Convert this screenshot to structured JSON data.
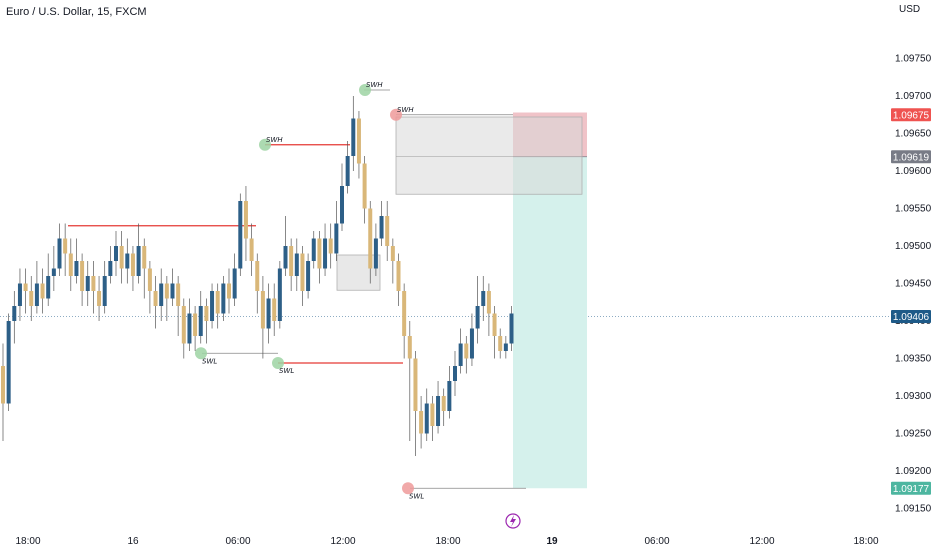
{
  "header": {
    "title": "Euro / U.S. Dollar, 15, FXCM",
    "currency": "USD"
  },
  "colors": {
    "bull": "#2d5f87",
    "bear": "#d9b779",
    "red": "#e53935",
    "profit_zone": "#d5f1ec",
    "loss_zone": "#f0c3c8",
    "gray_box": "#d9d9d9",
    "gray_box_border": "#b0b0b0",
    "green_dot": "#9ed4a3",
    "red_dot": "#ef9a9a",
    "price_badge": "#1e5a88",
    "red_badge": "#ef5350",
    "gray_badge": "#787b86",
    "teal_badge": "#4db6a0",
    "lightning": "#9c27b0"
  },
  "chart_data": {
    "type": "candlestick",
    "title": "Euro / U.S. Dollar, 15, FXCM",
    "ylabel": "USD",
    "ylim": [
      1.0914,
      1.0978
    ],
    "y_ticks": [
      "1.09750",
      "1.09700",
      "1.09650",
      "1.09600",
      "1.09550",
      "1.09500",
      "1.09450",
      "1.09400",
      "1.09350",
      "1.09300",
      "1.09250",
      "1.09200",
      "1.09150"
    ],
    "x_ticks": [
      "18:00",
      "16",
      "06:00",
      "12:00",
      "18:00",
      "19",
      "06:00",
      "12:00",
      "18:00"
    ],
    "price_badges": [
      {
        "label": "1.09675",
        "value": 1.09675,
        "color": "red"
      },
      {
        "label": "1.09619",
        "value": 1.09619,
        "color": "gray"
      },
      {
        "label": "1.09406",
        "value": 1.09406,
        "color": "blue"
      },
      {
        "label": "1.09177",
        "value": 1.09177,
        "color": "teal"
      }
    ],
    "current_price": 1.09406,
    "candles": [
      [
        1.0934,
        1.0929,
        1.0937,
        1.0924
      ],
      [
        1.0929,
        1.094,
        1.0941,
        1.0928
      ],
      [
        1.094,
        1.0942,
        1.0944,
        1.0937
      ],
      [
        1.0942,
        1.0945,
        1.0947,
        1.094
      ],
      [
        1.0945,
        1.0944,
        1.0947,
        1.0941
      ],
      [
        1.0944,
        1.0942,
        1.0946,
        1.094
      ],
      [
        1.0942,
        1.0945,
        1.0948,
        1.0941
      ],
      [
        1.0945,
        1.0943,
        1.0947,
        1.0941
      ],
      [
        1.0943,
        1.0946,
        1.0949,
        1.0942
      ],
      [
        1.0946,
        1.0947,
        1.095,
        1.0944
      ],
      [
        1.0947,
        1.0951,
        1.0953,
        1.0946
      ],
      [
        1.0951,
        1.0949,
        1.0953,
        1.0946
      ],
      [
        1.0949,
        1.0946,
        1.0951,
        1.0944
      ],
      [
        1.0946,
        1.0948,
        1.0951,
        1.0945
      ],
      [
        1.0948,
        1.0944,
        1.0949,
        1.0942
      ],
      [
        1.0944,
        1.0946,
        1.0948,
        1.0942
      ],
      [
        1.0946,
        1.0944,
        1.0948,
        1.0941
      ],
      [
        1.0944,
        1.0942,
        1.0946,
        1.094
      ],
      [
        1.0942,
        1.0946,
        1.0948,
        1.0941
      ],
      [
        1.0946,
        1.0948,
        1.095,
        1.0945
      ],
      [
        1.0948,
        1.095,
        1.0952,
        1.0946
      ],
      [
        1.095,
        1.0947,
        1.0952,
        1.0945
      ],
      [
        1.0947,
        1.0949,
        1.0951,
        1.0945
      ],
      [
        1.0949,
        1.0946,
        1.095,
        1.0944
      ],
      [
        1.0946,
        1.095,
        1.0953,
        1.0945
      ],
      [
        1.095,
        1.0947,
        1.0951,
        1.0943
      ],
      [
        1.0947,
        1.0944,
        1.0948,
        1.0941
      ],
      [
        1.0944,
        1.0942,
        1.0946,
        1.0939
      ],
      [
        1.0942,
        1.0945,
        1.0947,
        1.094
      ],
      [
        1.0945,
        1.0943,
        1.0946,
        1.094
      ],
      [
        1.0943,
        1.0945,
        1.0947,
        1.0942
      ],
      [
        1.0945,
        1.0942,
        1.0946,
        1.0938
      ],
      [
        1.0942,
        1.0937,
        1.0943,
        1.0935
      ],
      [
        1.0937,
        1.0941,
        1.0943,
        1.0936
      ],
      [
        1.0941,
        1.0938,
        1.0942,
        1.0936
      ],
      [
        1.0938,
        1.0942,
        1.0944,
        1.0937
      ],
      [
        1.0942,
        1.094,
        1.0943,
        1.0937
      ],
      [
        1.094,
        1.0944,
        1.0945,
        1.0939
      ],
      [
        1.0944,
        1.0941,
        1.0945,
        1.0939
      ],
      [
        1.0941,
        1.0945,
        1.0946,
        1.094
      ],
      [
        1.0945,
        1.0943,
        1.0947,
        1.0941
      ],
      [
        1.0943,
        1.0947,
        1.0949,
        1.0942
      ],
      [
        1.0947,
        1.0956,
        1.0957,
        1.0946
      ],
      [
        1.0956,
        1.0951,
        1.0958,
        1.0948
      ],
      [
        1.0951,
        1.0948,
        1.0953,
        1.0946
      ],
      [
        1.0948,
        1.0944,
        1.0949,
        1.0941
      ],
      [
        1.0944,
        1.0939,
        1.0946,
        1.0935
      ],
      [
        1.0939,
        1.0943,
        1.0945,
        1.0937
      ],
      [
        1.0943,
        1.094,
        1.0945,
        1.0938
      ],
      [
        1.094,
        1.0947,
        1.0948,
        1.0939
      ],
      [
        1.0947,
        1.095,
        1.0954,
        1.0946
      ],
      [
        1.095,
        1.0946,
        1.0951,
        1.0944
      ],
      [
        1.0946,
        1.0949,
        1.0951,
        1.0944
      ],
      [
        1.0949,
        1.0944,
        1.095,
        1.0942
      ],
      [
        1.0944,
        1.0948,
        1.0949,
        1.0943
      ],
      [
        1.0948,
        1.0951,
        1.0952,
        1.0947
      ],
      [
        1.0951,
        1.0947,
        1.0952,
        1.0945
      ],
      [
        1.0947,
        1.0951,
        1.0953,
        1.0946
      ],
      [
        1.0951,
        1.0949,
        1.0953,
        1.0947
      ],
      [
        1.0949,
        1.0953,
        1.0956,
        1.0948
      ],
      [
        1.0953,
        1.0958,
        1.0961,
        1.0952
      ],
      [
        1.0958,
        1.0962,
        1.0964,
        1.0957
      ],
      [
        1.0962,
        1.0967,
        1.097,
        1.096
      ],
      [
        1.0967,
        1.0961,
        1.0968,
        1.0959
      ],
      [
        1.0961,
        1.0955,
        1.0962,
        1.0953
      ],
      [
        1.0955,
        1.0947,
        1.0956,
        1.0945
      ],
      [
        1.0947,
        1.0951,
        1.0953,
        1.0946
      ],
      [
        1.0951,
        1.0954,
        1.0956,
        1.095
      ],
      [
        1.0954,
        1.095,
        1.0956,
        1.0948
      ],
      [
        1.095,
        1.0948,
        1.0951,
        1.0945
      ],
      [
        1.0948,
        1.0944,
        1.0949,
        1.0942
      ],
      [
        1.0944,
        1.0938,
        1.0945,
        1.0935
      ],
      [
        1.0938,
        1.0935,
        1.094,
        1.0924
      ],
      [
        1.0935,
        1.0928,
        1.0936,
        1.0922
      ],
      [
        1.0928,
        1.0925,
        1.093,
        1.0923
      ],
      [
        1.0925,
        1.0929,
        1.0931,
        1.0924
      ],
      [
        1.0929,
        1.0926,
        1.093,
        1.0924
      ],
      [
        1.0926,
        1.093,
        1.0932,
        1.0925
      ],
      [
        1.093,
        1.0928,
        1.0931,
        1.0926
      ],
      [
        1.0928,
        1.0932,
        1.0934,
        1.0927
      ],
      [
        1.0932,
        1.0934,
        1.0936,
        1.093
      ],
      [
        1.0934,
        1.0937,
        1.0939,
        1.0933
      ],
      [
        1.0937,
        1.0935,
        1.0938,
        1.0933
      ],
      [
        1.0935,
        1.0939,
        1.0941,
        1.0934
      ],
      [
        1.0939,
        1.0942,
        1.0946,
        1.0937
      ],
      [
        1.0942,
        1.0944,
        1.0946,
        1.094
      ],
      [
        1.0944,
        1.0941,
        1.0945,
        1.0938
      ],
      [
        1.0941,
        1.0938,
        1.0942,
        1.0935
      ],
      [
        1.0938,
        1.0936,
        1.0939,
        1.0935
      ],
      [
        1.0936,
        1.0937,
        1.0938,
        1.0935
      ],
      [
        1.0937,
        1.0941,
        1.0942,
        1.0936
      ]
    ],
    "annotations": [
      {
        "label": "SWH",
        "dot": "green",
        "price": 1.09635
      },
      {
        "label": "SWH",
        "dot": "green",
        "price": 1.09708
      },
      {
        "label": "SWH",
        "dot": "red",
        "price": 1.09675
      },
      {
        "label": "SWL",
        "dot": "green",
        "price": 1.09357
      },
      {
        "label": "SWL",
        "dot": "green",
        "price": 1.09344
      },
      {
        "label": "SWL",
        "dot": "red",
        "price": 1.09177
      }
    ]
  }
}
